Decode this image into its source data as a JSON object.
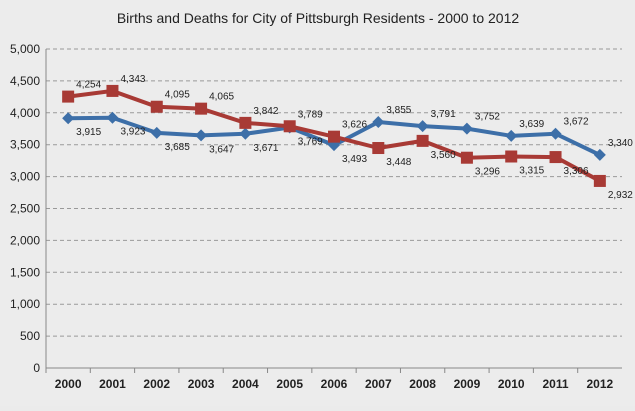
{
  "chart_data": {
    "type": "line",
    "title": "Births and Deaths for City of Pittsburgh Residents - 2000 to 2012",
    "xlabel": "",
    "ylabel": "",
    "categories": [
      "2000",
      "2001",
      "2002",
      "2003",
      "2004",
      "2005",
      "2006",
      "2007",
      "2008",
      "2009",
      "2010",
      "2011",
      "2012"
    ],
    "ylim": [
      0,
      5000
    ],
    "yticks": [
      0,
      500,
      1000,
      1500,
      2000,
      2500,
      3000,
      3500,
      4000,
      4500,
      5000
    ],
    "ytick_labels": [
      "0",
      "500",
      "1,000",
      "1,500",
      "2,000",
      "2,500",
      "3,000",
      "3,500",
      "4,000",
      "4,500",
      "5,000"
    ],
    "grid": true,
    "legend": "none",
    "series": [
      {
        "color": "#3d6fa8",
        "marker": "diamond",
        "values": [
          3915,
          3923,
          3685,
          3647,
          3671,
          3769,
          3493,
          3855,
          3791,
          3752,
          3639,
          3672,
          3340
        ],
        "labels": [
          "3,915",
          "3,923",
          "3,685",
          "3,647",
          "3,671",
          "3,769",
          "3,493",
          "3,855",
          "3,791",
          "3,752",
          "3,639",
          "3,672",
          "3,340"
        ]
      },
      {
        "color": "#a83a35",
        "marker": "square",
        "values": [
          4254,
          4343,
          4095,
          4065,
          3842,
          3789,
          3626,
          3448,
          3560,
          3296,
          3315,
          3306,
          2932
        ],
        "labels": [
          "4,254",
          "4,343",
          "4,095",
          "4,065",
          "3,842",
          "3,789",
          "3,626",
          "3,448",
          "3,560",
          "3,296",
          "3,315",
          "3,306",
          "2,932"
        ]
      }
    ]
  }
}
